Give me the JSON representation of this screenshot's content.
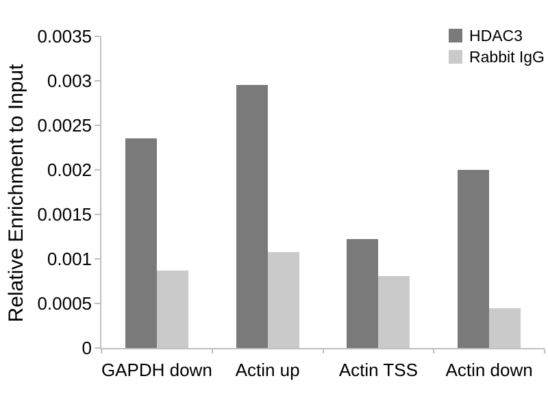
{
  "chart_data": {
    "type": "bar",
    "title": "",
    "categories": [
      "GAPDH down",
      "Actin up",
      "Actin TSS",
      "Actin down"
    ],
    "series": [
      {
        "name": "HDAC3",
        "color": "#7a7a7a",
        "values": [
          0.00235,
          0.00295,
          0.00122,
          0.002
        ]
      },
      {
        "name": "Rabbit IgG",
        "color": "#cacaca",
        "values": [
          0.00087,
          0.00108,
          0.00081,
          0.00045
        ]
      }
    ],
    "xlabel": "",
    "ylabel": "Relative Enrichment to Input",
    "ylim": [
      0,
      0.0035
    ],
    "yticks": [
      0,
      0.0005,
      0.001,
      0.0015,
      0.002,
      0.0025,
      0.003,
      0.0035
    ],
    "ytick_labels": [
      "0",
      "0.0005",
      "0.001",
      "0.0015",
      "0.002",
      "0.0025",
      "0.003",
      "0.0035"
    ],
    "grid": false,
    "legend_position": "top-right",
    "colors": {
      "axis": "#bfbfbf",
      "text": "#000000",
      "background": "#ffffff"
    }
  }
}
